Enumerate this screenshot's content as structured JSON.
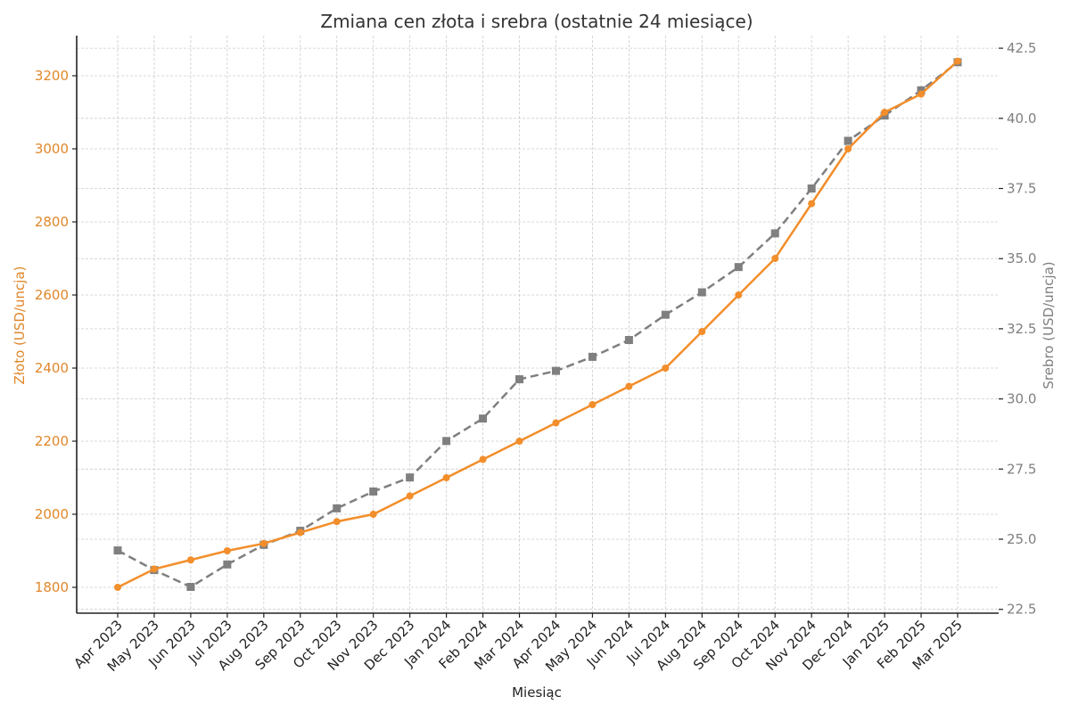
{
  "chart_data": {
    "type": "line",
    "title": "Zmiana cen złota i srebra (ostatnie 24 miesiące)",
    "xlabel": "Miesiąc",
    "ylabel": "Złoto (USD/uncja)",
    "ylabel_right": "Srebro (USD/uncja)",
    "categories": [
      "Apr 2023",
      "May 2023",
      "Jun 2023",
      "Jul 2023",
      "Aug 2023",
      "Sep 2023",
      "Oct 2023",
      "Nov 2023",
      "Dec 2023",
      "Jan 2024",
      "Feb 2024",
      "Mar 2024",
      "Apr 2024",
      "May 2024",
      "Jun 2024",
      "Jul 2024",
      "Aug 2024",
      "Sep 2024",
      "Oct 2024",
      "Nov 2024",
      "Dec 2024",
      "Jan 2025",
      "Feb 2025",
      "Mar 2025"
    ],
    "series": [
      {
        "name": "Złoto",
        "axis": "left",
        "color": "#f28e2b",
        "marker": "circle",
        "linestyle": "solid",
        "values": [
          1800,
          1850,
          1875,
          1900,
          1920,
          1950,
          1980,
          2000,
          2050,
          2100,
          2150,
          2200,
          2250,
          2300,
          2350,
          2400,
          2500,
          2600,
          2700,
          2850,
          3000,
          3100,
          3150,
          3240
        ]
      },
      {
        "name": "Srebro",
        "axis": "right",
        "color": "#7f7f7f",
        "marker": "square",
        "linestyle": "dashed",
        "values": [
          24.6,
          23.9,
          23.3,
          24.1,
          24.8,
          25.3,
          26.1,
          26.7,
          27.2,
          28.5,
          29.3,
          30.7,
          31.0,
          31.5,
          32.1,
          33.0,
          33.8,
          34.7,
          35.9,
          37.5,
          39.2,
          40.1,
          41.0,
          42.0
        ]
      }
    ],
    "ylim": [
      1730,
      3330
    ],
    "ylim_right": [
      22.4,
      43.5
    ],
    "yticks_left": [
      "1800",
      "2000",
      "2200",
      "2400",
      "2600",
      "2800",
      "3000",
      "3200"
    ],
    "yticks_right": [
      "22.5",
      "25.0",
      "27.5",
      "30.0",
      "32.5",
      "35.0",
      "37.5",
      "40.0",
      "42.5"
    ],
    "grid": true,
    "legend": null
  }
}
